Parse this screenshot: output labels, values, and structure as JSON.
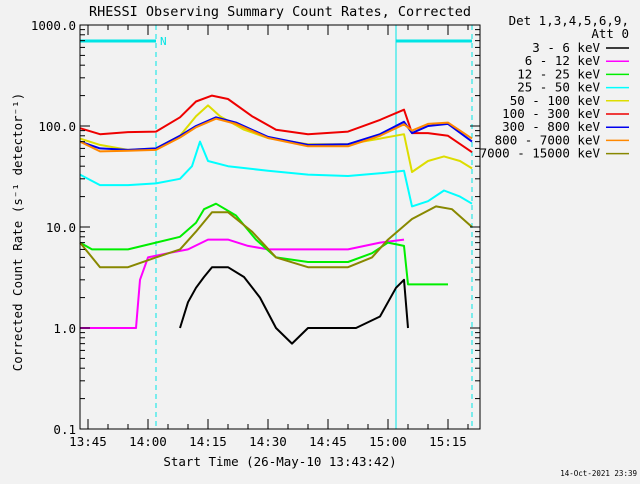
{
  "chart_data": {
    "type": "line",
    "title": "RHESSI Observing Summary Count Rates, Corrected",
    "xlabel": "Start Time (26-May-10 13:43:42)",
    "ylabel": "Corrected Count Rate (s⁻¹ detector⁻¹)",
    "yscale": "log",
    "ylim": [
      0.1,
      1000
    ],
    "y_ticks": [
      {
        "value": 0.1,
        "label": "0.1"
      },
      {
        "value": 1,
        "label": "1.0"
      },
      {
        "value": 10,
        "label": "10.0"
      },
      {
        "value": 100,
        "label": "100.0"
      },
      {
        "value": 1000,
        "label": "1000.0"
      }
    ],
    "xlim": [
      "13:43",
      "15:23"
    ],
    "x_ticks": [
      "13:45",
      "14:00",
      "14:15",
      "14:30",
      "14:45",
      "15:00",
      "15:15"
    ],
    "legend_header": [
      "Det 1,3,4,5,6,9,",
      "Att 0"
    ],
    "legend_position": "right",
    "annotations": {
      "night_label": "N",
      "footer_date": "14-Oct-2021 23:39",
      "night_bar": [
        "13:43",
        "14:02"
      ],
      "night_bar_2": [
        "15:02",
        "15:21"
      ],
      "dashed_markers": [
        "14:02",
        "15:21"
      ],
      "solid_markers": [
        "13:43",
        "15:02"
      ]
    },
    "series": [
      {
        "name": "3 - 6 keV",
        "color": "#000000",
        "points": [
          [
            "14:08",
            1.0
          ],
          [
            "14:10",
            1.8
          ],
          [
            "14:12",
            2.5
          ],
          [
            "14:14",
            3.2
          ],
          [
            "14:16",
            4.0
          ],
          [
            "14:20",
            4.0
          ],
          [
            "14:24",
            3.2
          ],
          [
            "14:28",
            2.0
          ],
          [
            "14:32",
            1.0
          ],
          [
            "14:36",
            0.7
          ],
          [
            "14:40",
            1.0
          ],
          [
            "14:52",
            1.0
          ],
          [
            "14:58",
            1.3
          ],
          [
            "15:02",
            2.5
          ],
          [
            "15:04",
            3.0
          ],
          [
            "15:05",
            1.0
          ]
        ]
      },
      {
        "name": "6 - 12 keV",
        "color": "#ff00ff",
        "points": [
          [
            "13:43",
            1.0
          ],
          [
            "13:57",
            1.0
          ],
          [
            "13:58",
            3.0
          ],
          [
            "14:00",
            5.0
          ],
          [
            "14:05",
            5.5
          ],
          [
            "14:10",
            6.0
          ],
          [
            "14:15",
            7.5
          ],
          [
            "14:20",
            7.5
          ],
          [
            "14:25",
            6.5
          ],
          [
            "14:30",
            6.0
          ],
          [
            "14:40",
            6.0
          ],
          [
            "14:50",
            6.0
          ],
          [
            "14:58",
            7.0
          ],
          [
            "15:04",
            7.5
          ]
        ]
      },
      {
        "name": "12 - 25 keV",
        "color": "#00ee00",
        "points": [
          [
            "13:43",
            7.0
          ],
          [
            "13:46",
            6.0
          ],
          [
            "13:55",
            6.0
          ],
          [
            "14:02",
            7.0
          ],
          [
            "14:08",
            8.0
          ],
          [
            "14:12",
            11.0
          ],
          [
            "14:14",
            15.0
          ],
          [
            "14:17",
            17.0
          ],
          [
            "14:22",
            13.0
          ],
          [
            "14:27",
            7.5
          ],
          [
            "14:32",
            5.0
          ],
          [
            "14:40",
            4.5
          ],
          [
            "14:50",
            4.5
          ],
          [
            "14:56",
            5.5
          ],
          [
            "15:00",
            7.0
          ],
          [
            "15:04",
            6.5
          ],
          [
            "15:05",
            2.7
          ],
          [
            "15:15",
            2.7
          ]
        ]
      },
      {
        "name": "25 - 50 keV",
        "color": "#00ffff",
        "points": [
          [
            "13:43",
            33
          ],
          [
            "13:48",
            26
          ],
          [
            "13:55",
            26
          ],
          [
            "14:02",
            27
          ],
          [
            "14:08",
            30
          ],
          [
            "14:11",
            40
          ],
          [
            "14:13",
            70
          ],
          [
            "14:15",
            45
          ],
          [
            "14:20",
            40
          ],
          [
            "14:30",
            36
          ],
          [
            "14:40",
            33
          ],
          [
            "14:50",
            32
          ],
          [
            "14:58",
            34
          ],
          [
            "15:04",
            36
          ],
          [
            "15:06",
            16
          ],
          [
            "15:10",
            18
          ],
          [
            "15:14",
            23
          ],
          [
            "15:18",
            20
          ],
          [
            "15:21",
            17
          ]
        ]
      },
      {
        "name": "50 - 100 keV",
        "color": "#dddd00",
        "points": [
          [
            "13:43",
            75
          ],
          [
            "13:48",
            65
          ],
          [
            "13:55",
            58
          ],
          [
            "14:02",
            60
          ],
          [
            "14:08",
            80
          ],
          [
            "14:12",
            125
          ],
          [
            "14:15",
            160
          ],
          [
            "14:18",
            125
          ],
          [
            "14:24",
            92
          ],
          [
            "14:30",
            76
          ],
          [
            "14:40",
            66
          ],
          [
            "14:50",
            66
          ],
          [
            "14:58",
            75
          ],
          [
            "15:04",
            83
          ],
          [
            "15:06",
            35
          ],
          [
            "15:10",
            45
          ],
          [
            "15:14",
            50
          ],
          [
            "15:18",
            45
          ],
          [
            "15:21",
            38
          ]
        ]
      },
      {
        "name": "100 - 300 keV",
        "color": "#ee0000",
        "points": [
          [
            "13:43",
            95
          ],
          [
            "13:48",
            83
          ],
          [
            "13:55",
            87
          ],
          [
            "14:02",
            88
          ],
          [
            "14:08",
            122
          ],
          [
            "14:12",
            175
          ],
          [
            "14:16",
            200
          ],
          [
            "14:20",
            185
          ],
          [
            "14:26",
            125
          ],
          [
            "14:32",
            92
          ],
          [
            "14:40",
            83
          ],
          [
            "14:50",
            88
          ],
          [
            "14:58",
            115
          ],
          [
            "15:04",
            145
          ],
          [
            "15:06",
            85
          ],
          [
            "15:10",
            85
          ],
          [
            "15:15",
            80
          ],
          [
            "15:21",
            55
          ]
        ]
      },
      {
        "name": "300 - 800 keV",
        "color": "#0000ee",
        "points": [
          [
            "13:43",
            70
          ],
          [
            "13:48",
            60
          ],
          [
            "13:55",
            58
          ],
          [
            "14:02",
            60
          ],
          [
            "14:08",
            80
          ],
          [
            "14:12",
            100
          ],
          [
            "14:17",
            122
          ],
          [
            "14:22",
            108
          ],
          [
            "14:30",
            78
          ],
          [
            "14:40",
            65
          ],
          [
            "14:50",
            66
          ],
          [
            "14:58",
            83
          ],
          [
            "15:04",
            110
          ],
          [
            "15:06",
            85
          ],
          [
            "15:10",
            100
          ],
          [
            "15:15",
            105
          ],
          [
            "15:21",
            70
          ]
        ]
      },
      {
        "name": "800 - 7000 keV",
        "color": "#ff8800",
        "points": [
          [
            "13:43",
            70
          ],
          [
            "13:48",
            56
          ],
          [
            "13:55",
            57
          ],
          [
            "14:02",
            58
          ],
          [
            "14:08",
            77
          ],
          [
            "14:12",
            97
          ],
          [
            "14:17",
            118
          ],
          [
            "14:22",
            105
          ],
          [
            "14:30",
            76
          ],
          [
            "14:40",
            63
          ],
          [
            "14:50",
            63
          ],
          [
            "14:58",
            80
          ],
          [
            "15:04",
            104
          ],
          [
            "15:06",
            90
          ],
          [
            "15:10",
            105
          ],
          [
            "15:15",
            108
          ],
          [
            "15:21",
            75
          ]
        ]
      },
      {
        "name": "7000 - 15000 keV",
        "color": "#888800",
        "points": [
          [
            "13:43",
            7.0
          ],
          [
            "13:48",
            4.0
          ],
          [
            "13:55",
            4.0
          ],
          [
            "14:02",
            5.0
          ],
          [
            "14:08",
            6.0
          ],
          [
            "14:12",
            9.0
          ],
          [
            "14:16",
            14.0
          ],
          [
            "14:20",
            14.0
          ],
          [
            "14:26",
            9.0
          ],
          [
            "14:32",
            5.0
          ],
          [
            "14:40",
            4.0
          ],
          [
            "14:50",
            4.0
          ],
          [
            "14:56",
            5.0
          ],
          [
            "15:00",
            7.5
          ],
          [
            "15:06",
            12.0
          ],
          [
            "15:12",
            16.0
          ],
          [
            "15:16",
            15.0
          ],
          [
            "15:21",
            10.0
          ]
        ]
      }
    ]
  }
}
